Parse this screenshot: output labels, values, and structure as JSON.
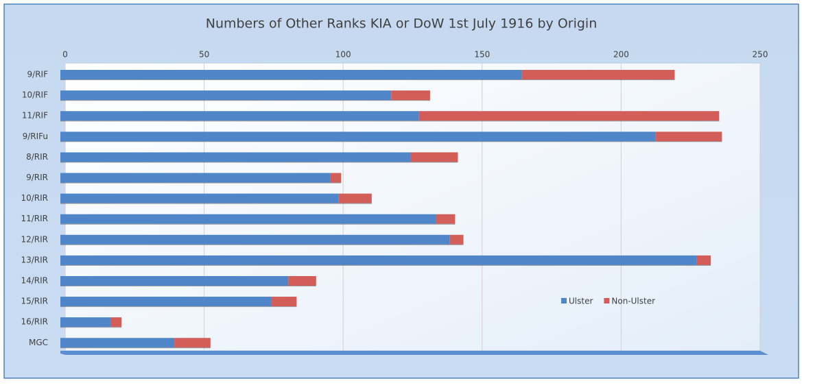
{
  "chart_data": {
    "type": "stacked-bar-horizontal",
    "title": "Numbers of Other Ranks KIA or DoW 1st July 1916 by Origin",
    "categories": [
      "9/RIF",
      "10/RIF",
      "11/RIF",
      "9/RIFu",
      "8/RIR",
      "9/RIR",
      "10/RIR",
      "11/RIR",
      "12/RIR",
      "13/RIR",
      "14/RIR",
      "15/RIR",
      "16/RIR",
      "MGC"
    ],
    "series": [
      {
        "name": "Ulster",
        "color": "#4f86c9",
        "values": [
          166,
          119,
          129,
          214,
          126,
          97,
          100,
          135,
          140,
          229,
          82,
          76,
          18,
          41
        ]
      },
      {
        "name": "Non-Ulster",
        "color": "#d35d59",
        "values": [
          55,
          14,
          108,
          24,
          17,
          4,
          12,
          7,
          5,
          5,
          10,
          9,
          4,
          13
        ]
      }
    ],
    "xlim": [
      0,
      250
    ],
    "xticks": [
      0,
      50,
      100,
      150,
      200,
      250
    ],
    "grid": true
  }
}
